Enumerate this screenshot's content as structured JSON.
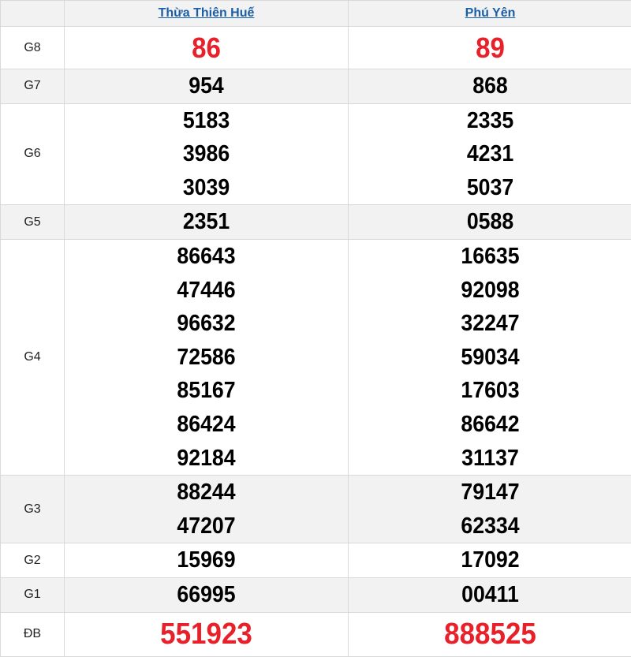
{
  "header": {
    "provinces": [
      "Thừa Thiên Huế",
      "Phú Yên"
    ]
  },
  "accent_color": "#e8202a",
  "link_color": "#1a5ea8",
  "rows": [
    {
      "label": "G8",
      "values": [
        [
          "86"
        ],
        [
          "89"
        ]
      ],
      "highlight": true
    },
    {
      "label": "G7",
      "values": [
        [
          "954"
        ],
        [
          "868"
        ]
      ]
    },
    {
      "label": "G6",
      "values": [
        [
          "5183",
          "3986",
          "3039"
        ],
        [
          "2335",
          "4231",
          "5037"
        ]
      ]
    },
    {
      "label": "G5",
      "values": [
        [
          "2351"
        ],
        [
          "0588"
        ]
      ]
    },
    {
      "label": "G4",
      "values": [
        [
          "86643",
          "47446",
          "96632",
          "72586",
          "85167",
          "86424",
          "92184"
        ],
        [
          "16635",
          "92098",
          "32247",
          "59034",
          "17603",
          "86642",
          "31137"
        ]
      ]
    },
    {
      "label": "G3",
      "values": [
        [
          "88244",
          "47207"
        ],
        [
          "79147",
          "62334"
        ]
      ]
    },
    {
      "label": "G2",
      "values": [
        [
          "15969"
        ],
        [
          "17092"
        ]
      ]
    },
    {
      "label": "G1",
      "values": [
        [
          "66995"
        ],
        [
          "00411"
        ]
      ]
    },
    {
      "label": "ĐB",
      "values": [
        [
          "551923"
        ],
        [
          "888525"
        ]
      ],
      "highlight": true
    }
  ]
}
